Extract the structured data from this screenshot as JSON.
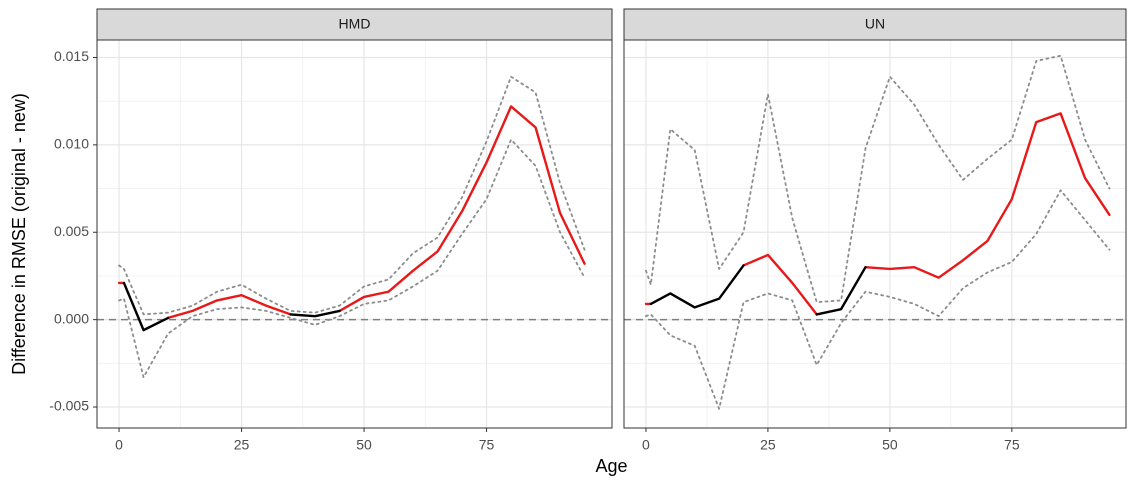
{
  "chart_data": [
    {
      "type": "line",
      "title": "HMD",
      "ylabel": "Difference in RMSE (original - new)",
      "xlabel": "Age",
      "x": [
        0,
        1,
        5,
        10,
        15,
        20,
        25,
        30,
        35,
        40,
        45,
        50,
        55,
        60,
        65,
        70,
        75,
        80,
        85,
        90,
        95
      ],
      "xlim": [
        -4.5,
        100.6
      ],
      "xticks": [
        0,
        25,
        50,
        75
      ],
      "ylim": [
        -0.0062,
        0.016
      ],
      "yticks": [
        {
          "value": -0.005,
          "label": "-0.005"
        },
        {
          "value": 0,
          "label": "0.000"
        },
        {
          "value": 0.005,
          "label": "0.005"
        },
        {
          "value": 0.01,
          "label": "0.010"
        },
        {
          "value": 0.015,
          "label": "0.015"
        }
      ],
      "grid": true,
      "minor_grid": true,
      "hline": 0,
      "series": [
        {
          "color": "#e8191a",
          "values": [
            0.0021,
            0.0021,
            null,
            0.0001,
            0.0005,
            0.0011,
            0.0014,
            0.0008,
            0.0003,
            null,
            0.0005,
            0.0013,
            0.0016,
            0.0028,
            0.0039,
            0.0062,
            0.009,
            0.0122,
            0.011,
            0.0061,
            0.0032
          ]
        },
        {
          "color": "#000000",
          "values": [
            null,
            0.0021,
            -0.0006,
            0.0001,
            null,
            null,
            null,
            null,
            0.0003,
            0.0002,
            0.0005,
            null,
            null,
            null,
            null,
            null,
            null,
            null,
            null,
            null,
            null
          ]
        },
        {
          "color": "#8c8c8c",
          "dash": "dotted",
          "values": [
            0.0031,
            0.0029,
            0.0003,
            0.0004,
            0.0008,
            0.0016,
            0.002,
            0.0012,
            0.0005,
            0.0004,
            0.0008,
            0.0019,
            0.0023,
            0.0038,
            0.0047,
            0.007,
            0.0102,
            0.0139,
            0.013,
            0.0078,
            0.004
          ]
        },
        {
          "color": "#8c8c8c",
          "dash": "dotted",
          "values": [
            0.0011,
            0.0012,
            -0.0033,
            -0.0008,
            0.0002,
            0.0006,
            0.0007,
            0.0005,
            0.0001,
            -0.0003,
            0.0002,
            0.0009,
            0.0011,
            0.0019,
            0.0028,
            0.0049,
            0.0069,
            0.0103,
            0.0088,
            0.005,
            0.0024
          ]
        }
      ]
    },
    {
      "type": "line",
      "title": "UN",
      "x": [
        0,
        1,
        5,
        10,
        15,
        20,
        25,
        30,
        35,
        40,
        45,
        50,
        55,
        60,
        65,
        70,
        75,
        80,
        85,
        90,
        95
      ],
      "xlim": [
        -4.5,
        98.4
      ],
      "xticks": [
        0,
        25,
        50,
        75
      ],
      "ylim": [
        -0.0062,
        0.016
      ],
      "yticks": [
        -0.005,
        0,
        0.005,
        0.01,
        0.015
      ],
      "grid": true,
      "minor_grid": true,
      "hline": 0,
      "series": [
        {
          "color": "#e8191a",
          "values": [
            0.0009,
            0.0009,
            null,
            null,
            null,
            0.0031,
            0.0037,
            0.0021,
            0.0003,
            null,
            0.003,
            0.0029,
            0.003,
            0.0024,
            0.0034,
            0.0045,
            0.0069,
            0.0113,
            0.0118,
            0.0081,
            0.006
          ]
        },
        {
          "color": "#000000",
          "values": [
            null,
            0.0009,
            0.0015,
            0.0007,
            0.0012,
            0.0031,
            null,
            null,
            0.0003,
            0.0006,
            0.003,
            null,
            null,
            null,
            null,
            null,
            null,
            null,
            null,
            null,
            null
          ]
        },
        {
          "color": "#8c8c8c",
          "dash": "dotted",
          "values": [
            0.0028,
            0.002,
            0.0109,
            0.0097,
            0.0029,
            0.005,
            0.0129,
            0.0058,
            0.001,
            0.0011,
            0.0098,
            0.0139,
            0.0123,
            0.01,
            0.008,
            0.0092,
            0.0103,
            0.0148,
            0.0151,
            0.0103,
            0.0075
          ]
        },
        {
          "color": "#8c8c8c",
          "dash": "dotted",
          "values": [
            0.0002,
            0.0003,
            -0.0009,
            -0.0015,
            -0.0051,
            0.001,
            0.0015,
            0.0011,
            -0.0026,
            -0.0002,
            0.0016,
            0.0013,
            0.0009,
            0.0002,
            0.0018,
            0.0027,
            0.0033,
            0.0049,
            0.0074,
            0.0057,
            0.004
          ]
        }
      ]
    }
  ]
}
